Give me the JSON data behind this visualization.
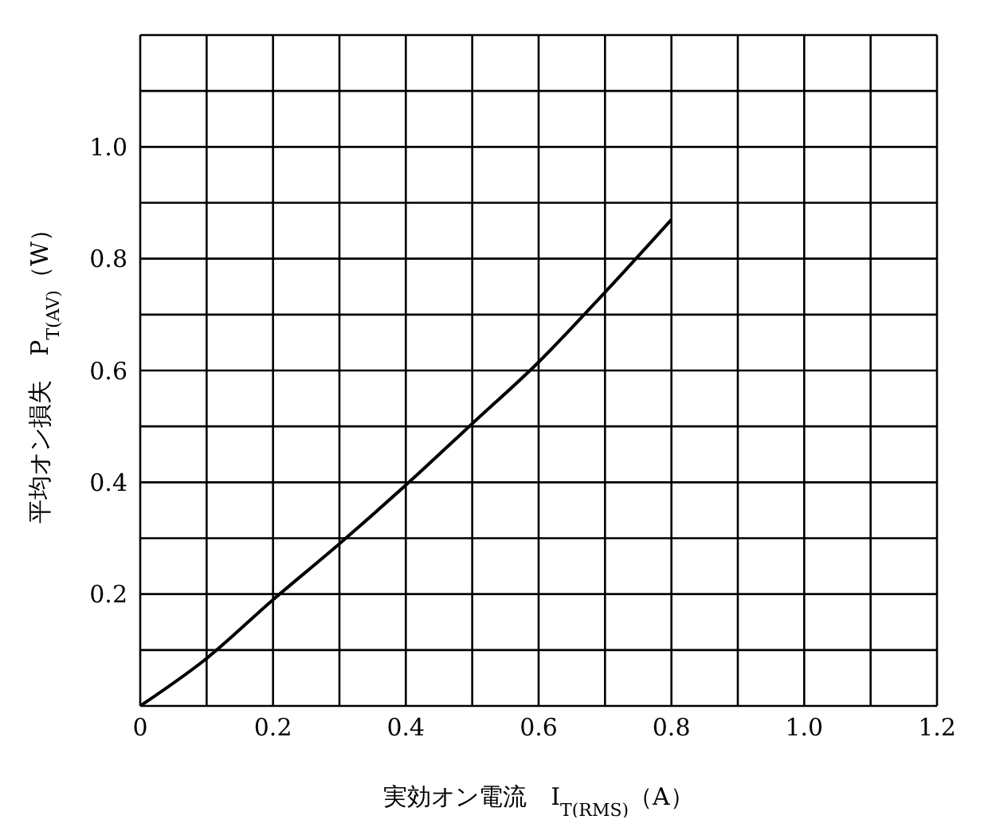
{
  "chart_data": {
    "type": "line",
    "xlabel": "実効オン電流　I$_{T(RMS)}$（A）",
    "ylabel": "平均オン損失　P$_{T(AV)}$（W）",
    "x": [
      0,
      0.1,
      0.2,
      0.3,
      0.4,
      0.5,
      0.6,
      0.7,
      0.8
    ],
    "series": [
      {
        "color": "#000000",
        "values": [
          0,
          0.085,
          0.19,
          0.29,
          0.395,
          0.505,
          0.615,
          0.74,
          0.87
        ]
      }
    ],
    "xlim": [
      0,
      1.2
    ],
    "ylim": [
      0,
      1.2
    ],
    "xticks": [
      0,
      {
        "value": 0.1,
        "label": null
      },
      0.2,
      {
        "value": 0.3,
        "label": null
      },
      0.4,
      {
        "value": 0.5,
        "label": null
      },
      0.6,
      {
        "value": 0.7,
        "label": null
      },
      0.8,
      {
        "value": 0.9,
        "label": null
      },
      {
        "value": 1.0,
        "label": "1.0"
      },
      {
        "value": 1.1,
        "label": null
      },
      1.2
    ],
    "yticks": [
      {
        "value": 0,
        "label": null
      },
      {
        "value": 0.1,
        "label": null
      },
      0.2,
      {
        "value": 0.3,
        "label": null
      },
      0.4,
      {
        "value": 0.5,
        "label": null
      },
      0.6,
      {
        "value": 0.7,
        "label": null
      },
      0.8,
      {
        "value": 0.9,
        "label": null
      },
      {
        "value": 1.0,
        "label": "1.0"
      },
      {
        "value": 1.1,
        "label": null
      },
      {
        "value": 1.2,
        "label": null
      }
    ],
    "grid": true,
    "legend": false,
    "marker": "none",
    "line_style": "solid"
  }
}
